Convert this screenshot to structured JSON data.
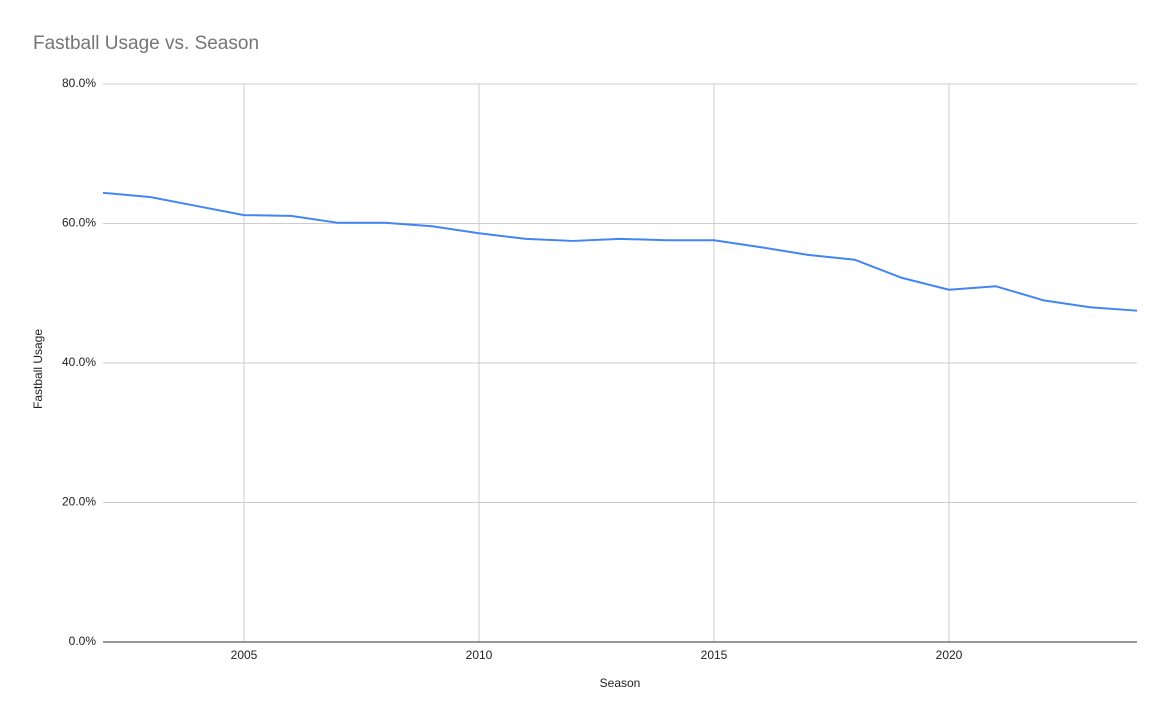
{
  "chart_data": {
    "type": "line",
    "title": "Fastball Usage vs. Season",
    "x_label": "Season",
    "y_label": "Fastball Usage",
    "x": [
      2002,
      2003,
      2004,
      2005,
      2006,
      2007,
      2008,
      2009,
      2010,
      2011,
      2012,
      2013,
      2014,
      2015,
      2016,
      2017,
      2018,
      2019,
      2020,
      2021,
      2022,
      2023,
      2024
    ],
    "series": [
      {
        "name": "Fastball Usage",
        "color": "#4285f4",
        "values": [
          64.4,
          63.8,
          62.5,
          61.2,
          61.1,
          60.1,
          60.1,
          59.6,
          58.6,
          57.8,
          57.5,
          57.8,
          57.6,
          57.6,
          56.6,
          55.5,
          54.8,
          52.2,
          50.5,
          51.0,
          49.0,
          48.0,
          47.5
        ]
      }
    ],
    "xlim": [
      2002,
      2024
    ],
    "xticks": [
      2005,
      2010,
      2015,
      2020
    ],
    "ylim": [
      0,
      80
    ],
    "yticks": [
      {
        "value": 0,
        "label": "0.0%"
      },
      {
        "value": 20,
        "label": "20.0%"
      },
      {
        "value": 40,
        "label": "40.0%"
      },
      {
        "value": 60,
        "label": "60.0%"
      },
      {
        "value": 80,
        "label": "80.0%"
      }
    ],
    "grid": true
  }
}
